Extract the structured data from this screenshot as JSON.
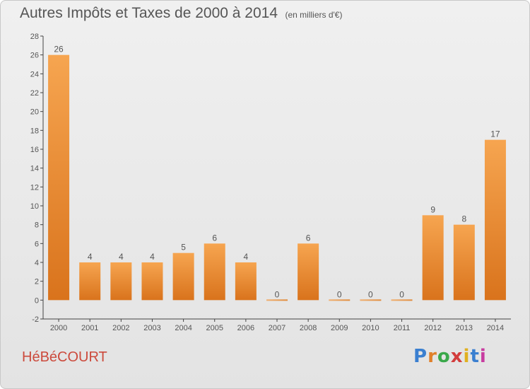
{
  "title": "Autres Impôts et Taxes de 2000 à 2014",
  "unit_label": "(en milliers d'€)",
  "commune_name": "HéBéCOURT",
  "logo_text": "Proxiti",
  "colors": {
    "bar_light": "#f6a550",
    "bar_dark": "#d9731c",
    "text": "#555555",
    "commune": "#cc4a3c"
  },
  "chart_data": {
    "type": "bar",
    "title": "Autres Impôts et Taxes de 2000 à 2014",
    "subtitle": "(en milliers d'€)",
    "xlabel": "",
    "ylabel": "",
    "categories": [
      "2000",
      "2001",
      "2002",
      "2003",
      "2004",
      "2005",
      "2006",
      "2007",
      "2008",
      "2009",
      "2010",
      "2011",
      "2012",
      "2013",
      "2014"
    ],
    "values": [
      26,
      4,
      4,
      4,
      5,
      6,
      4,
      0,
      6,
      0,
      0,
      0,
      9,
      8,
      17
    ],
    "ylim": [
      -2,
      28
    ],
    "yticks": [
      -2,
      0,
      2,
      4,
      6,
      8,
      10,
      12,
      14,
      16,
      18,
      20,
      22,
      24,
      26,
      28
    ],
    "grid": false,
    "data_labels": true
  }
}
